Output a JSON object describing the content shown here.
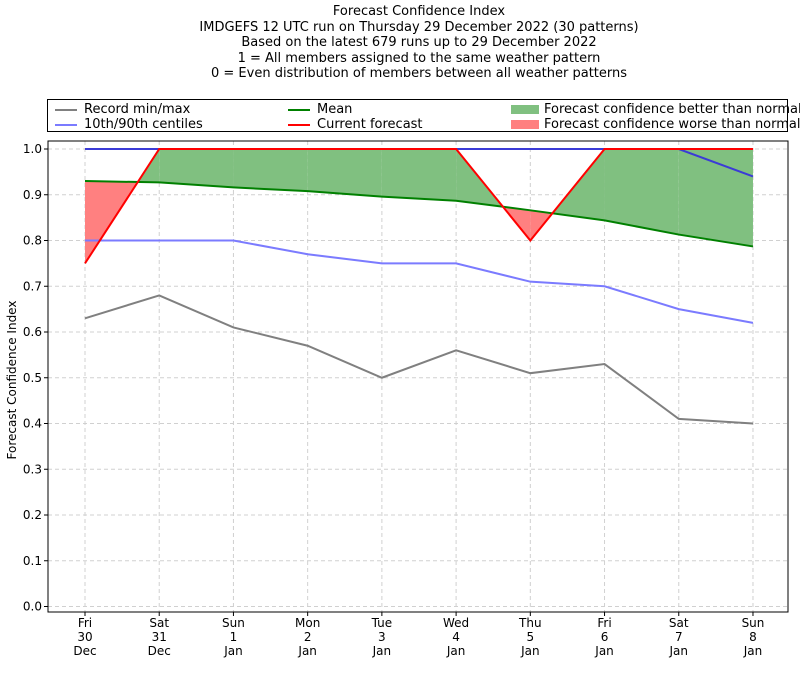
{
  "titles": [
    "Forecast Confidence Index",
    "IMDGEFS 12 UTC run on Thursday 29 December 2022 (30 patterns)",
    "Based on the latest 679 runs up to 29 December 2022",
    "1 = All members assigned to the same weather pattern",
    "0 = Even distribution of members between all weather patterns"
  ],
  "legend": {
    "record": "Record min/max",
    "centiles": "10th/90th centiles",
    "mean": "Mean",
    "current": "Current forecast",
    "better": "Forecast confidence better than normal",
    "worse": "Forecast confidence worse than normal"
  },
  "chart_data": {
    "type": "line",
    "title": "Forecast Confidence Index",
    "ylabel": "Forecast Confidence Index",
    "xlabel": "",
    "ylim": [
      0.0,
      1.0
    ],
    "yticks": [
      "0.0",
      "0.1",
      "0.2",
      "0.3",
      "0.4",
      "0.5",
      "0.6",
      "0.7",
      "0.8",
      "0.9",
      "1.0"
    ],
    "grid": true,
    "categories": [
      [
        "Fri",
        "30",
        "Dec"
      ],
      [
        "Sat",
        "31",
        "Dec"
      ],
      [
        "Sun",
        "1",
        "Jan"
      ],
      [
        "Mon",
        "2",
        "Jan"
      ],
      [
        "Tue",
        "3",
        "Jan"
      ],
      [
        "Wed",
        "4",
        "Jan"
      ],
      [
        "Thu",
        "5",
        "Jan"
      ],
      [
        "Fri",
        "6",
        "Jan"
      ],
      [
        "Sat",
        "7",
        "Jan"
      ],
      [
        "Sun",
        "8",
        "Jan"
      ]
    ],
    "series": [
      {
        "name": "Record min/max",
        "role": "record_min",
        "color": "#808080",
        "values": [
          0.63,
          0.68,
          0.61,
          0.57,
          0.5,
          0.56,
          0.51,
          0.53,
          0.41,
          0.4
        ]
      },
      {
        "name": "Record min/max",
        "role": "record_max",
        "color": "#3b3bd6",
        "values": [
          1.0,
          1.0,
          1.0,
          1.0,
          1.0,
          1.0,
          1.0,
          1.0,
          1.0,
          0.94
        ]
      },
      {
        "name": "10th/90th centiles",
        "role": "p10",
        "color": "#7b7bff",
        "values": [
          0.8,
          0.8,
          0.8,
          0.77,
          0.75,
          0.75,
          0.71,
          0.7,
          0.65,
          0.62
        ]
      },
      {
        "name": "10th/90th centiles",
        "role": "p90",
        "color": "#7b7bff",
        "values": [
          1.0,
          1.0,
          1.0,
          1.0,
          1.0,
          1.0,
          1.0,
          1.0,
          1.0,
          1.0
        ]
      },
      {
        "name": "Mean",
        "role": "mean",
        "color": "#008000",
        "values": [
          0.93,
          0.927,
          0.916,
          0.908,
          0.896,
          0.887,
          0.866,
          0.844,
          0.813,
          0.787
        ]
      },
      {
        "name": "Current forecast",
        "role": "current",
        "color": "#ff0000",
        "values": [
          0.75,
          1.0,
          1.0,
          1.0,
          1.0,
          1.0,
          0.8,
          1.0,
          1.0,
          1.0
        ]
      }
    ],
    "fill_colors": {
      "better": "#80c080",
      "worse": "#ff8080"
    }
  }
}
